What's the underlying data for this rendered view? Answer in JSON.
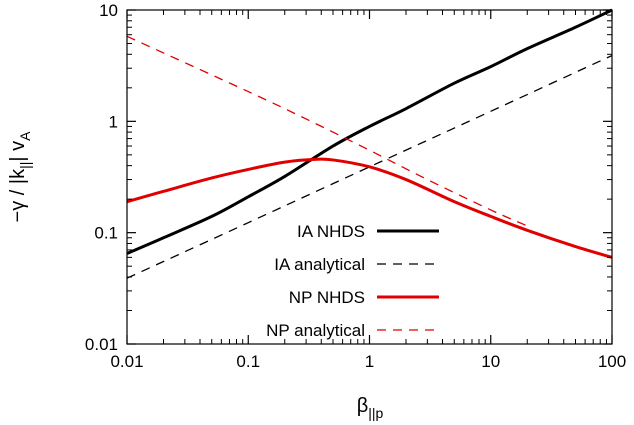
{
  "chart_data": {
    "type": "line",
    "xlabel": {
      "base": "β",
      "sub": "||p"
    },
    "ylabel": {
      "main": "−γ / |k",
      "sub": "||",
      "mid": "| v",
      "sub2": "A"
    },
    "x_scale": "log",
    "y_scale": "log",
    "xlim": [
      0.01,
      100
    ],
    "ylim": [
      0.01,
      10
    ],
    "x_ticks": [
      {
        "value": 0.01,
        "label": "0.01"
      },
      {
        "value": 0.1,
        "label": "0.1"
      },
      {
        "value": 1,
        "label": "1"
      },
      {
        "value": 10,
        "label": "10"
      },
      {
        "value": 100,
        "label": "100"
      }
    ],
    "y_ticks": [
      {
        "value": 0.01,
        "label": "0.01"
      },
      {
        "value": 0.1,
        "label": "0.1"
      },
      {
        "value": 1,
        "label": "1"
      },
      {
        "value": 10,
        "label": "10"
      }
    ],
    "grid": false,
    "legend_position": "bottom-center",
    "colors": {
      "black": "#000000",
      "red": "#e00000"
    },
    "series": [
      {
        "name": "IA NHDS",
        "color": "#000000",
        "style": "solid",
        "width": 3,
        "x": [
          0.01,
          0.02,
          0.05,
          0.1,
          0.2,
          0.5,
          1,
          2,
          5,
          10,
          20,
          50,
          100
        ],
        "y": [
          0.065,
          0.09,
          0.14,
          0.21,
          0.32,
          0.6,
          0.9,
          1.3,
          2.2,
          3.1,
          4.5,
          7.0,
          10.0
        ]
      },
      {
        "name": "IA analytical",
        "color": "#000000",
        "style": "dashed",
        "width": 1.3,
        "x": [
          0.01,
          0.1,
          1,
          10,
          100
        ],
        "y": [
          0.039,
          0.123,
          0.39,
          1.23,
          3.9
        ]
      },
      {
        "name": "NP NHDS",
        "color": "#e00000",
        "style": "solid",
        "width": 3,
        "x": [
          0.01,
          0.02,
          0.05,
          0.1,
          0.2,
          0.35,
          0.5,
          1,
          2,
          5,
          10,
          20,
          50,
          100
        ],
        "y": [
          0.19,
          0.235,
          0.31,
          0.37,
          0.43,
          0.455,
          0.45,
          0.39,
          0.3,
          0.19,
          0.14,
          0.105,
          0.075,
          0.06
        ]
      },
      {
        "name": "NP analytical",
        "color": "#e00000",
        "style": "dashed",
        "width": 1.3,
        "x": [
          0.01,
          0.1,
          0.3,
          1,
          3,
          10,
          20
        ],
        "y": [
          5.8,
          1.85,
          1.05,
          0.55,
          0.3,
          0.16,
          0.115
        ]
      }
    ]
  }
}
